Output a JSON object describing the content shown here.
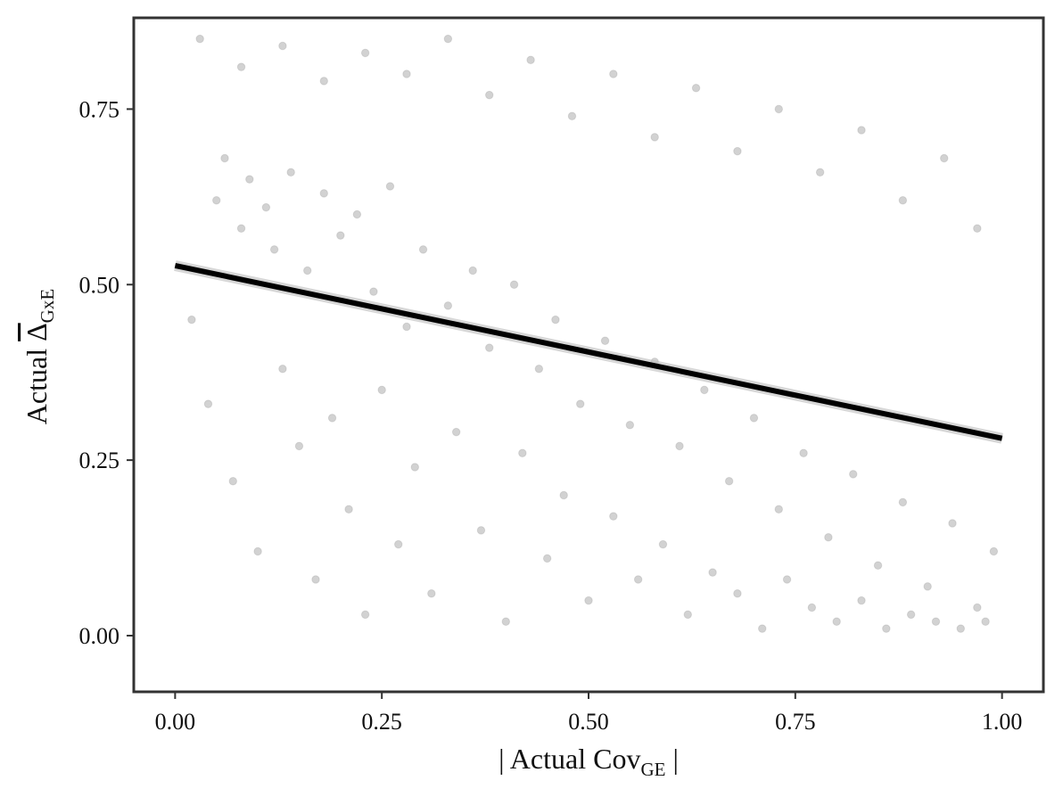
{
  "chart_data": {
    "type": "scatter",
    "title": "",
    "xlabel": {
      "prefix": "| Actual Cov",
      "subscript": "GE",
      "suffix": " |"
    },
    "ylabel": {
      "prefix": "Actual ",
      "symbol": "Δ",
      "subscript": "GxE"
    },
    "xlim": [
      -0.05,
      1.05
    ],
    "ylim": [
      -0.08,
      0.88
    ],
    "xticks": [
      {
        "value": 0.0,
        "label": "0.00"
      },
      {
        "value": 0.25,
        "label": "0.25"
      },
      {
        "value": 0.5,
        "label": "0.50"
      },
      {
        "value": 0.75,
        "label": "0.75"
      },
      {
        "value": 1.0,
        "label": "1.00"
      }
    ],
    "yticks": [
      {
        "value": 0.0,
        "label": "0.00"
      },
      {
        "value": 0.25,
        "label": "0.25"
      },
      {
        "value": 0.5,
        "label": "0.50"
      },
      {
        "value": 0.75,
        "label": "0.75"
      }
    ],
    "grid": false,
    "legend": "none",
    "point_color": "#8a8a8a",
    "point_opacity": 0.38,
    "fit_line_color": "#000000",
    "fit_line_band_color": "#bdbdbd",
    "series": [
      {
        "kind": "points",
        "values": [
          {
            "x": 0.05,
            "y": 0.62
          },
          {
            "x": 0.06,
            "y": 0.68
          },
          {
            "x": 0.08,
            "y": 0.58
          },
          {
            "x": 0.09,
            "y": 0.65
          },
          {
            "x": 0.11,
            "y": 0.61
          },
          {
            "x": 0.12,
            "y": 0.55
          },
          {
            "x": 0.14,
            "y": 0.66
          },
          {
            "x": 0.16,
            "y": 0.52
          },
          {
            "x": 0.18,
            "y": 0.63
          },
          {
            "x": 0.2,
            "y": 0.57
          },
          {
            "x": 0.22,
            "y": 0.6
          },
          {
            "x": 0.24,
            "y": 0.49
          },
          {
            "x": 0.26,
            "y": 0.64
          },
          {
            "x": 0.28,
            "y": 0.44
          },
          {
            "x": 0.3,
            "y": 0.55
          },
          {
            "x": 0.33,
            "y": 0.47
          },
          {
            "x": 0.36,
            "y": 0.52
          },
          {
            "x": 0.38,
            "y": 0.41
          },
          {
            "x": 0.41,
            "y": 0.5
          },
          {
            "x": 0.44,
            "y": 0.38
          },
          {
            "x": 0.46,
            "y": 0.45
          },
          {
            "x": 0.49,
            "y": 0.33
          },
          {
            "x": 0.52,
            "y": 0.42
          },
          {
            "x": 0.55,
            "y": 0.3
          },
          {
            "x": 0.58,
            "y": 0.39
          },
          {
            "x": 0.61,
            "y": 0.27
          },
          {
            "x": 0.64,
            "y": 0.35
          },
          {
            "x": 0.67,
            "y": 0.22
          },
          {
            "x": 0.7,
            "y": 0.31
          },
          {
            "x": 0.73,
            "y": 0.18
          },
          {
            "x": 0.76,
            "y": 0.26
          },
          {
            "x": 0.79,
            "y": 0.14
          },
          {
            "x": 0.82,
            "y": 0.23
          },
          {
            "x": 0.85,
            "y": 0.1
          },
          {
            "x": 0.88,
            "y": 0.19
          },
          {
            "x": 0.91,
            "y": 0.07
          },
          {
            "x": 0.94,
            "y": 0.16
          },
          {
            "x": 0.97,
            "y": 0.04
          },
          {
            "x": 0.99,
            "y": 0.12
          },
          {
            "x": 0.02,
            "y": 0.45
          },
          {
            "x": 0.04,
            "y": 0.33
          },
          {
            "x": 0.07,
            "y": 0.22
          },
          {
            "x": 0.1,
            "y": 0.12
          },
          {
            "x": 0.13,
            "y": 0.38
          },
          {
            "x": 0.15,
            "y": 0.27
          },
          {
            "x": 0.17,
            "y": 0.08
          },
          {
            "x": 0.19,
            "y": 0.31
          },
          {
            "x": 0.21,
            "y": 0.18
          },
          {
            "x": 0.23,
            "y": 0.03
          },
          {
            "x": 0.25,
            "y": 0.35
          },
          {
            "x": 0.27,
            "y": 0.13
          },
          {
            "x": 0.29,
            "y": 0.24
          },
          {
            "x": 0.31,
            "y": 0.06
          },
          {
            "x": 0.34,
            "y": 0.29
          },
          {
            "x": 0.37,
            "y": 0.15
          },
          {
            "x": 0.4,
            "y": 0.02
          },
          {
            "x": 0.42,
            "y": 0.26
          },
          {
            "x": 0.45,
            "y": 0.11
          },
          {
            "x": 0.47,
            "y": 0.2
          },
          {
            "x": 0.5,
            "y": 0.05
          },
          {
            "x": 0.53,
            "y": 0.17
          },
          {
            "x": 0.56,
            "y": 0.08
          },
          {
            "x": 0.59,
            "y": 0.13
          },
          {
            "x": 0.62,
            "y": 0.03
          },
          {
            "x": 0.65,
            "y": 0.09
          },
          {
            "x": 0.68,
            "y": 0.06
          },
          {
            "x": 0.71,
            "y": 0.01
          },
          {
            "x": 0.74,
            "y": 0.08
          },
          {
            "x": 0.77,
            "y": 0.04
          },
          {
            "x": 0.8,
            "y": 0.02
          },
          {
            "x": 0.83,
            "y": 0.05
          },
          {
            "x": 0.86,
            "y": 0.01
          },
          {
            "x": 0.89,
            "y": 0.03
          },
          {
            "x": 0.92,
            "y": 0.02
          },
          {
            "x": 0.95,
            "y": 0.01
          },
          {
            "x": 0.98,
            "y": 0.02
          },
          {
            "x": 0.03,
            "y": 0.85
          },
          {
            "x": 0.08,
            "y": 0.81
          },
          {
            "x": 0.13,
            "y": 0.84
          },
          {
            "x": 0.18,
            "y": 0.79
          },
          {
            "x": 0.23,
            "y": 0.83
          },
          {
            "x": 0.28,
            "y": 0.8
          },
          {
            "x": 0.33,
            "y": 0.85
          },
          {
            "x": 0.38,
            "y": 0.77
          },
          {
            "x": 0.43,
            "y": 0.82
          },
          {
            "x": 0.48,
            "y": 0.74
          },
          {
            "x": 0.53,
            "y": 0.8
          },
          {
            "x": 0.58,
            "y": 0.71
          },
          {
            "x": 0.63,
            "y": 0.78
          },
          {
            "x": 0.68,
            "y": 0.69
          },
          {
            "x": 0.73,
            "y": 0.75
          },
          {
            "x": 0.78,
            "y": 0.66
          },
          {
            "x": 0.83,
            "y": 0.72
          },
          {
            "x": 0.88,
            "y": 0.62
          },
          {
            "x": 0.93,
            "y": 0.68
          },
          {
            "x": 0.97,
            "y": 0.58
          }
        ]
      },
      {
        "kind": "fit-line",
        "name": "",
        "values": [
          {
            "x": 0.0,
            "y": 0.527
          },
          {
            "x": 1.0,
            "y": 0.281
          }
        ]
      }
    ]
  }
}
